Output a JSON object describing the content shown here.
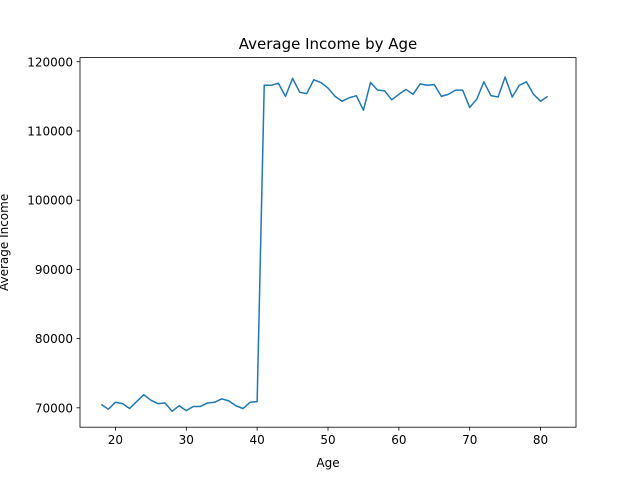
{
  "chart_data": {
    "type": "line",
    "title": "Average Income by Age",
    "xlabel": "Age",
    "ylabel": "Average Income",
    "xlim": [
      15,
      85
    ],
    "ylim": [
      67200,
      120600
    ],
    "xticks": [
      20,
      30,
      40,
      50,
      60,
      70,
      80
    ],
    "yticks": [
      70000,
      80000,
      90000,
      100000,
      110000,
      120000
    ],
    "grid": false,
    "legend": "none",
    "series": [
      {
        "color": "#1f77b4",
        "x": [
          18,
          19,
          20,
          21,
          22,
          23,
          24,
          25,
          26,
          27,
          28,
          29,
          30,
          31,
          32,
          33,
          34,
          35,
          36,
          37,
          38,
          39,
          40,
          41,
          42,
          43,
          44,
          45,
          46,
          47,
          48,
          49,
          50,
          51,
          52,
          53,
          54,
          55,
          56,
          57,
          58,
          59,
          60,
          61,
          62,
          63,
          64,
          65,
          66,
          67,
          68,
          69,
          70,
          71,
          72,
          73,
          74,
          75,
          76,
          77,
          78,
          79,
          80,
          81
        ],
        "y": [
          70500,
          69800,
          70800,
          70600,
          69900,
          70900,
          71900,
          71100,
          70600,
          70700,
          69500,
          70300,
          69600,
          70200,
          70200,
          70700,
          70800,
          71300,
          71000,
          70300,
          69900,
          70800,
          70900,
          116600,
          116600,
          116900,
          115000,
          117600,
          115600,
          115400,
          117400,
          117000,
          116200,
          115000,
          114300,
          114800,
          115100,
          113000,
          117000,
          115900,
          115800,
          114500,
          115300,
          116000,
          115300,
          116800,
          116600,
          116700,
          115000,
          115300,
          115900,
          115900,
          113400,
          114600,
          117100,
          115100,
          114900,
          117800,
          114900,
          116600,
          117100,
          115300,
          114300,
          115000
        ]
      }
    ]
  }
}
